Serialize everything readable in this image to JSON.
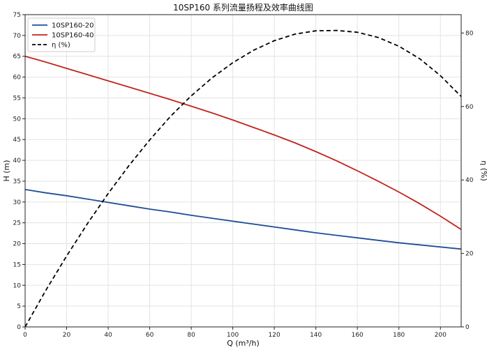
{
  "chart_data": {
    "type": "line",
    "title": "10SP160 系列流量扬程及效率曲线图",
    "xlabel": "Q (m³/h)",
    "ylabel": "H (m)",
    "y2label": "η (%)",
    "xlim": [
      0,
      210
    ],
    "ylim": [
      0,
      75
    ],
    "y2lim": [
      0,
      85
    ],
    "x_ticks": [
      0,
      20,
      40,
      60,
      80,
      100,
      120,
      140,
      160,
      180,
      200
    ],
    "y_ticks": [
      0,
      5,
      10,
      15,
      20,
      25,
      30,
      35,
      40,
      45,
      50,
      55,
      60,
      65,
      70,
      75
    ],
    "y2_ticks": [
      0,
      20,
      40,
      60,
      80
    ],
    "grid": true,
    "legend_position": "top-left",
    "x": [
      0,
      10,
      20,
      30,
      40,
      50,
      60,
      70,
      80,
      90,
      100,
      110,
      120,
      130,
      140,
      150,
      160,
      170,
      180,
      190,
      200,
      210
    ],
    "series": [
      {
        "name": "10SP160-20",
        "axis": "left",
        "color": "#1f4e96",
        "dash": "solid",
        "values": [
          33.0,
          32.2,
          31.5,
          30.7,
          29.9,
          29.1,
          28.3,
          27.6,
          26.8,
          26.1,
          25.4,
          24.7,
          24.0,
          23.3,
          22.6,
          22.0,
          21.4,
          20.8,
          20.2,
          19.7,
          19.2,
          18.7
        ]
      },
      {
        "name": "10SP160-40",
        "axis": "left",
        "color": "#c0241c",
        "dash": "solid",
        "values": [
          65.0,
          63.6,
          62.1,
          60.6,
          59.1,
          57.6,
          56.1,
          54.6,
          53.0,
          51.4,
          49.7,
          47.9,
          46.1,
          44.2,
          42.1,
          39.9,
          37.5,
          35.0,
          32.4,
          29.6,
          26.6,
          23.4
        ]
      },
      {
        "name": "η (%)",
        "axis": "right",
        "color": "#000000",
        "dash": "dashed",
        "values": [
          0,
          10.0,
          19.3,
          28.1,
          36.3,
          43.9,
          50.9,
          57.3,
          62.9,
          67.8,
          71.9,
          75.3,
          77.9,
          79.7,
          80.6,
          80.7,
          80.2,
          78.8,
          76.4,
          73.0,
          68.4,
          62.7
        ]
      }
    ]
  }
}
